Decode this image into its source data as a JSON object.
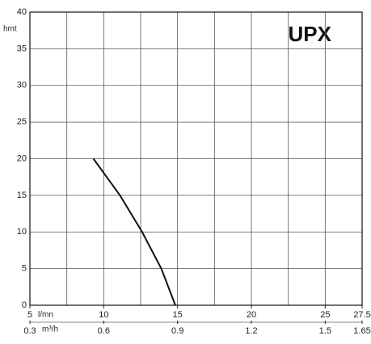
{
  "chart_data": {
    "type": "line",
    "annotation": "UPX",
    "ylabel": "hmt",
    "xlabel": "l/mn",
    "x2label": "m³/h",
    "x": [
      9.3,
      11.1,
      12.6,
      13.9,
      14.85
    ],
    "series": [
      {
        "name": "UPX",
        "color": "#111111",
        "values": [
          20,
          15,
          10,
          5,
          0
        ]
      }
    ],
    "xlim": [
      5,
      27.5
    ],
    "xticks": [
      5,
      10,
      15,
      20,
      25,
      27.5
    ],
    "xgrid": [
      7.5,
      10,
      12.5,
      15,
      17.5,
      20,
      22.5,
      25
    ],
    "x2lim": [
      0.3,
      1.65
    ],
    "x2ticks": [
      0.3,
      0.6,
      0.9,
      1.2,
      1.5,
      1.65
    ],
    "ylim": [
      0,
      40
    ],
    "yticks": [
      0,
      5,
      10,
      15,
      20,
      25,
      30,
      35,
      40
    ],
    "grid": true
  }
}
